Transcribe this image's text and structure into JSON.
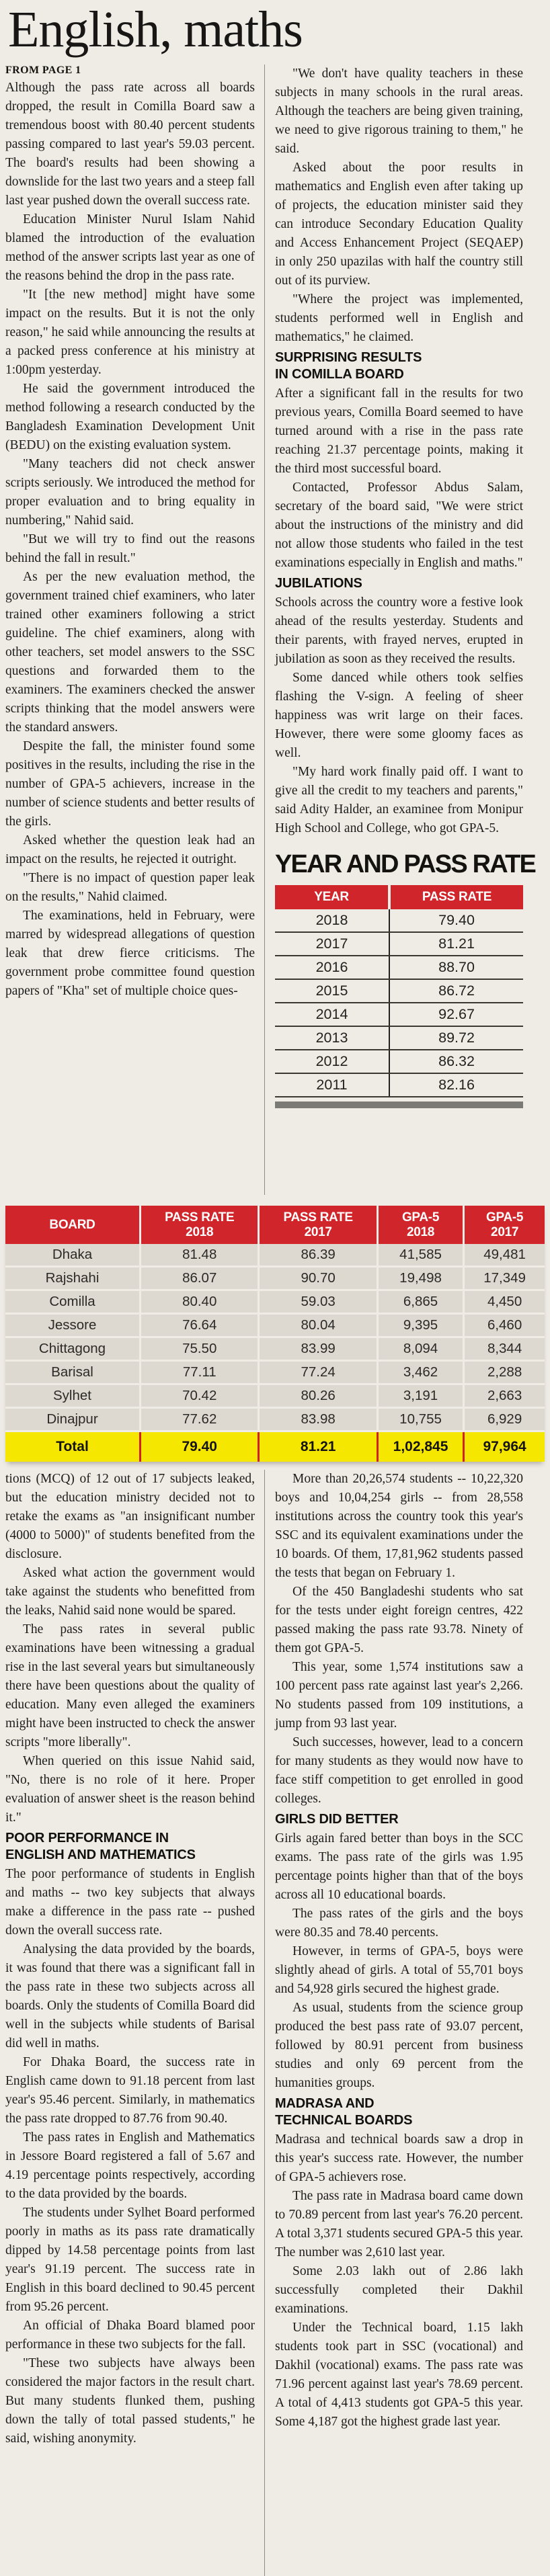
{
  "page": {
    "title": "English, maths",
    "kicker": "FROM PAGE 1"
  },
  "colors": {
    "accent_red": "#d0262b",
    "total_yellow": "#f6e700",
    "row_gray": "#ddd9d1",
    "newsprint": "#efece6"
  },
  "article": {
    "section1_left": {
      "items": [
        {
          "t": "p",
          "ni": true,
          "text": "Although the pass rate across all boards dropped, the result in Comilla Board saw a tremendous boost with 80.40 percent students passing compared to last year's 59.03 percent. The board's results had been showing a downslide for the last two years and a steep fall last year pushed down the overall success rate."
        },
        {
          "t": "p",
          "text": "Education Minister Nurul Islam Nahid blamed the introduction of the evaluation method of the answer scripts last year as one of the reasons behind the drop in the pass rate."
        },
        {
          "t": "p",
          "text": "\"It [the new method] might have some impact on the results. But it is not the only reason,\" he said while announcing the results at a packed press conference at his ministry at 1:00pm yesterday."
        },
        {
          "t": "p",
          "text": "He said the government introduced the method following a research conducted by the Bangladesh Examination Development Unit (BEDU) on the existing evaluation system."
        },
        {
          "t": "p",
          "text": "\"Many teachers did not check answer scripts seriously. We introduced the method for proper evaluation and to bring equality in numbering,\" Nahid said."
        },
        {
          "t": "p",
          "text": "\"But we will try to find out the reasons behind the fall in result.\""
        },
        {
          "t": "p",
          "text": "As per the new evaluation method, the government trained chief examiners, who later trained other examiners following a strict guideline. The chief examiners, along with other teachers, set model answers to the SSC questions and forwarded them to the examiners. The examiners checked the answer scripts thinking that the model answers were the standard answers."
        },
        {
          "t": "p",
          "text": "Despite the fall, the minister found some positives in the results, including the rise in the number of GPA-5 achievers, increase in the number of science students and better results of the girls."
        },
        {
          "t": "p",
          "text": "Asked whether the question leak had an impact on the results, he rejected it outright."
        },
        {
          "t": "p",
          "text": "\"There is no impact of question paper leak on the results,\" Nahid claimed."
        },
        {
          "t": "p",
          "text": "The examinations, held in February, were marred by widespread allegations of question leak that drew fierce criticisms. The government probe committee found question papers of \"Kha\" set of multiple choice ques-"
        }
      ]
    },
    "section1_right": {
      "items": [
        {
          "t": "p",
          "text": "\"We don't have quality teachers in these subjects in many schools in the rural areas. Although the teachers are being given training, we need to give rigorous training to them,\" he said."
        },
        {
          "t": "p",
          "text": "Asked about the poor results in mathematics and English even after taking up of projects, the education minister said they can introduce Secondary Education Quality and Access Enhancement Project (SEQAEP) in only 250 upazilas with half the country still out of its purview."
        },
        {
          "t": "p",
          "text": "\"Where the project was implemented, students performed well in English and mathematics,\" he claimed."
        },
        {
          "t": "h",
          "text": "SURPRISING RESULTS\nIN COMILLA BOARD"
        },
        {
          "t": "p",
          "ni": true,
          "text": "After a significant fall in the results for two previous years, Comilla Board seemed to have turned around with a rise in the pass rate reaching 21.37 percentage points, making it the third most successful board."
        },
        {
          "t": "p",
          "text": "Contacted, Professor Abdus Salam, secretary of the board said, \"We were strict about the instructions of the ministry and did not allow those students who failed in the test examinations especially in English and maths.\""
        },
        {
          "t": "h",
          "text": "JUBILATIONS"
        },
        {
          "t": "p",
          "ni": true,
          "text": "Schools across the country wore a festive look ahead of the results yesterday. Students and their parents, with frayed nerves, erupted in jubilation as soon as they received the results."
        },
        {
          "t": "p",
          "text": "Some danced while others took selfies flashing the V-sign. A feeling of sheer happiness was writ large on their faces. However, there were some gloomy faces as well."
        },
        {
          "t": "p",
          "text": "\"My hard work finally paid off. I want to give all the credit to my teachers and parents,\" said Adity Halder, an examinee from Monipur High School and College, who got GPA-5."
        }
      ]
    },
    "section2_left": {
      "items": [
        {
          "t": "p",
          "ni": true,
          "text": "tions (MCQ) of 12 out of 17 subjects leaked, but the education ministry decided not to retake the exams as \"an insignificant number (4000 to 5000)\" of students benefited from the disclosure."
        },
        {
          "t": "p",
          "text": "Asked what action the government would take against the students who benefitted from the leaks, Nahid said none would be spared."
        },
        {
          "t": "p",
          "text": "The pass rates in several public examinations have been witnessing a gradual rise in the last several years but simultaneously there have been questions about the quality of education. Many even alleged the examiners might have been instructed to check the answer scripts \"more liberally\"."
        },
        {
          "t": "p",
          "text": "When queried on this issue Nahid said, \"No, there is no role of it here. Proper evaluation of answer sheet is the reason behind it.\""
        },
        {
          "t": "h",
          "text": "POOR PERFORMANCE IN\nENGLISH AND MATHEMATICS"
        },
        {
          "t": "p",
          "ni": true,
          "text": "The poor performance of students in English and maths -- two key subjects that always make a difference in the pass rate -- pushed down the overall success rate."
        },
        {
          "t": "p",
          "text": "Analysing the data provided by the boards, it was found that there was a significant fall in the pass rate in these two subjects across all boards. Only the students of Comilla Board did well in the subjects while students of Barisal did well in maths."
        },
        {
          "t": "p",
          "text": "For Dhaka Board, the success rate in English came down to 91.18 percent from last year's 95.46 percent. Similarly, in mathematics the pass rate dropped to 87.76 from 90.40."
        },
        {
          "t": "p",
          "text": "The pass rates in English and Mathematics in Jessore Board registered a fall of 5.67 and 4.19 percentage points respectively, according to the data provided by the boards."
        },
        {
          "t": "p",
          "text": "The students under Sylhet Board performed poorly in maths as its pass rate dramatically dipped by 14.58 percentage points from last year's 91.19 percent. The success rate in English in this board declined to 90.45 percent from 95.26 percent."
        },
        {
          "t": "p",
          "text": "An official of Dhaka Board blamed poor performance in these two subjects for the fall."
        },
        {
          "t": "p",
          "text": "\"These two subjects have always been considered the major factors in the result chart. But many students flunked them, pushing down the tally of total passed students,\" he said, wishing anonymity."
        }
      ]
    },
    "section2_right": {
      "items": [
        {
          "t": "p",
          "text": "More than 20,26,574 students -- 10,22,320 boys and 10,04,254 girls -- from 28,558 institutions across the country took this year's SSC and its equivalent examinations under the 10 boards. Of them, 17,81,962 students passed the tests that began on February 1."
        },
        {
          "t": "p",
          "text": "Of the 450 Bangladeshi students who sat for the tests under eight foreign centres, 422 passed making the pass rate 93.78. Ninety of them got GPA-5."
        },
        {
          "t": "p",
          "text": "This year, some 1,574 institutions saw a 100 percent pass rate against last year's 2,266. No students passed from 109 institutions, a jump from 93 last year."
        },
        {
          "t": "p",
          "text": "Such successes, however, lead to a concern for many students as they would now have to face stiff competition to get enrolled in good colleges."
        },
        {
          "t": "h",
          "text": "GIRLS DID BETTER"
        },
        {
          "t": "p",
          "ni": true,
          "text": "Girls again fared better than boys in the SCC exams. The pass rate of the girls was 1.95 percentage points higher than that of the boys across all 10 educational boards."
        },
        {
          "t": "p",
          "text": "The pass rates of the girls and the boys were 80.35 and 78.40 percents."
        },
        {
          "t": "p",
          "text": "However, in terms of GPA-5, boys were slightly ahead of girls. A total of 55,701 boys and 54,928 girls secured the highest grade."
        },
        {
          "t": "p",
          "text": "As usual, students from the science group  produced the best pass rate of 93.07 percent, followed by 80.91 percent from business studies and only 69 percent from the humanities groups."
        },
        {
          "t": "h",
          "text": "MADRASA AND\nTECHNICAL BOARDS"
        },
        {
          "t": "p",
          "ni": true,
          "text": "Madrasa and technical boards saw a drop in this year's success rate. However, the number of GPA-5 achievers rose."
        },
        {
          "t": "p",
          "text": "The pass rate in Madrasa board came down to 70.89 percent from last year's 76.20 percent. A total 3,371 students secured GPA-5 this year. The number was 2,610 last year."
        },
        {
          "t": "p",
          "text": "Some 2.03 lakh out of 2.86 lakh successfully completed their Dakhil examinations."
        },
        {
          "t": "p",
          "text": "Under the Technical board, 1.15 lakh students took part in SSC (vocational) and Dakhil (vocational) exams. The pass rate was 71.96 percent against last year's 78.69 percent. A total of 4,413 students got GPA-5 this year. Some 4,187 got the highest grade last year."
        }
      ]
    }
  },
  "year_table": {
    "title": "YEAR AND PASS RATE",
    "header_rows": [
      [
        "YEAR",
        "PASS RATE"
      ]
    ],
    "rows": [
      [
        "2018",
        "79.40"
      ],
      [
        "2017",
        "81.21"
      ],
      [
        "2016",
        "88.70"
      ],
      [
        "2015",
        "86.72"
      ],
      [
        "2014",
        "92.67"
      ],
      [
        "2013",
        "89.72"
      ],
      [
        "2012",
        "86.32"
      ],
      [
        "2011",
        "82.16"
      ]
    ]
  },
  "board_table": {
    "header_rows": [
      [
        "BOARD",
        "PASS RATE\n2018",
        "PASS RATE\n2017",
        "GPA-5\n2018",
        "GPA-5\n2017"
      ]
    ],
    "rows": [
      [
        "Dhaka",
        "81.48",
        "86.39",
        "41,585",
        "49,481"
      ],
      [
        "Rajshahi",
        "86.07",
        "90.70",
        "19,498",
        "17,349"
      ],
      [
        "Comilla",
        "80.40",
        "59.03",
        "6,865",
        "4,450"
      ],
      [
        "Jessore",
        "76.64",
        "80.04",
        "9,395",
        "6,460"
      ],
      [
        "Chittagong",
        "75.50",
        "83.99",
        "8,094",
        "8,344"
      ],
      [
        "Barisal",
        "77.11",
        "77.24",
        "3,462",
        "2,288"
      ],
      [
        "Sylhet",
        "70.42",
        "80.26",
        "3,191",
        "2,663"
      ],
      [
        "Dinajpur",
        "77.62",
        "83.98",
        "10,755",
        "6,929"
      ]
    ],
    "total_rows": [
      [
        "Total",
        "79.40",
        "81.21",
        "1,02,845",
        "97,964"
      ]
    ]
  }
}
